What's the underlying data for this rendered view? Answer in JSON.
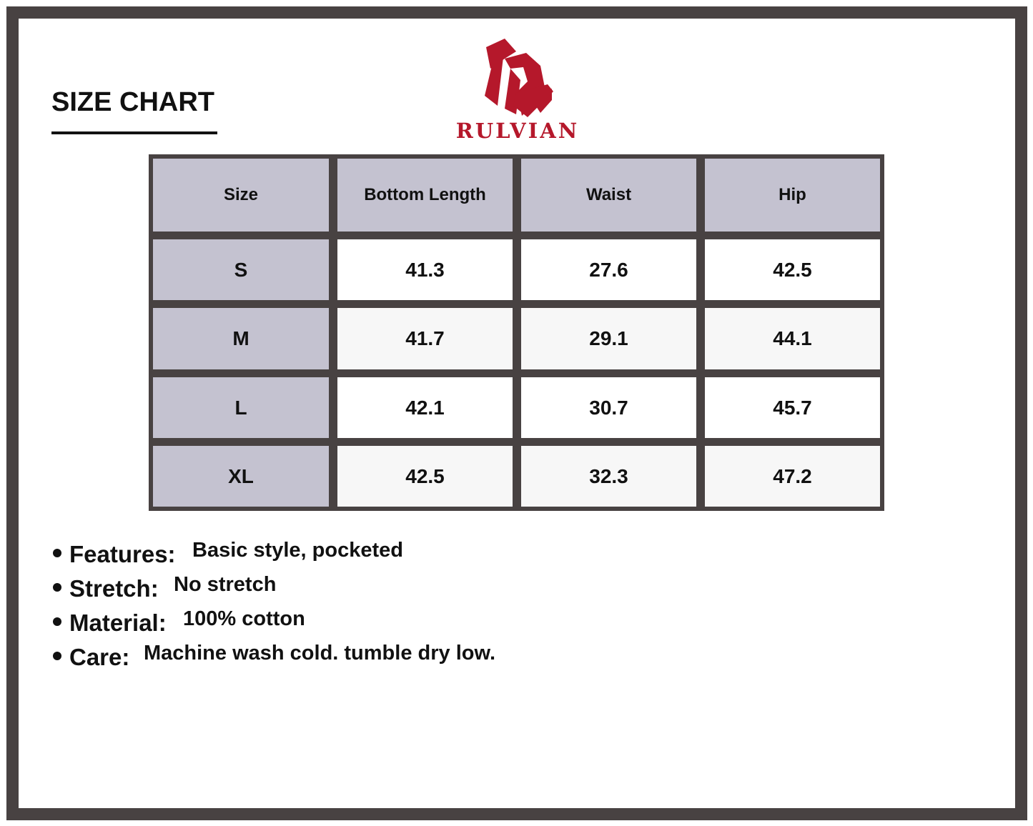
{
  "title": "SIZE CHART",
  "brand": {
    "name": "RULVIAN",
    "color": "#b5182b"
  },
  "table": {
    "headers": [
      "Size",
      "Bottom Length",
      "Waist",
      "Hip"
    ],
    "rows": [
      [
        "S",
        "41.3",
        "27.6",
        "42.5"
      ],
      [
        "M",
        "41.7",
        "29.1",
        "44.1"
      ],
      [
        "L",
        "42.1",
        "30.7",
        "45.7"
      ],
      [
        "XL",
        "42.5",
        "32.3",
        "47.2"
      ]
    ]
  },
  "features": [
    {
      "label": "Features:",
      "value": "Basic style, pocketed"
    },
    {
      "label": "Stretch:",
      "value": "No stretch"
    },
    {
      "label": "Material:",
      "value": "100% cotton"
    },
    {
      "label": "Care:",
      "value": "Machine wash cold. tumble dry low."
    }
  ]
}
